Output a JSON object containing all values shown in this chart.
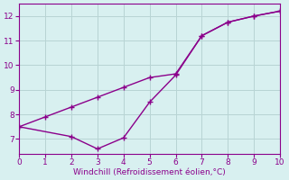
{
  "line1_x": [
    0,
    1,
    2,
    3,
    4,
    5,
    6,
    7,
    8,
    9,
    10
  ],
  "line1_y": [
    7.5,
    7.9,
    8.3,
    8.7,
    9.1,
    9.5,
    9.65,
    11.2,
    11.75,
    12.0,
    12.2
  ],
  "line2_x": [
    0,
    2,
    3,
    4,
    5,
    6,
    7,
    8,
    9,
    10
  ],
  "line2_y": [
    7.5,
    7.1,
    6.6,
    7.05,
    8.5,
    9.6,
    11.2,
    11.75,
    12.0,
    12.2
  ],
  "color": "#8B008B",
  "bg_color": "#d8f0f0",
  "grid_color": "#b8d4d4",
  "xlabel": "Windchill (Refroidissement éolien,°C)",
  "xlim": [
    0,
    10
  ],
  "ylim": [
    6.4,
    12.5
  ],
  "xticks": [
    0,
    1,
    2,
    3,
    4,
    5,
    6,
    7,
    8,
    9,
    10
  ],
  "yticks": [
    7,
    8,
    9,
    10,
    11,
    12
  ],
  "markersize": 3,
  "linewidth": 1.0
}
